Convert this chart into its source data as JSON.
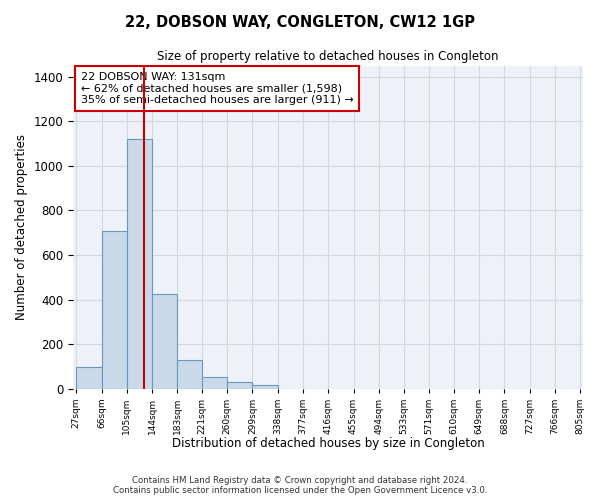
{
  "title": "22, DOBSON WAY, CONGLETON, CW12 1GP",
  "subtitle": "Size of property relative to detached houses in Congleton",
  "xlabel": "Distribution of detached houses by size in Congleton",
  "ylabel": "Number of detached properties",
  "bin_edges": [
    27,
    66,
    105,
    144,
    183,
    221,
    260,
    299,
    338,
    377,
    416,
    455,
    494,
    533,
    571,
    610,
    649,
    688,
    727,
    766,
    805
  ],
  "bin_counts": [
    100,
    710,
    1120,
    425,
    130,
    55,
    30,
    15,
    0,
    0,
    0,
    0,
    0,
    0,
    0,
    0,
    0,
    0,
    0,
    0
  ],
  "bar_facecolor": "#c9d9ea",
  "bar_edgecolor": "#6699bb",
  "redline_x": 131,
  "annotation_title": "22 DOBSON WAY: 131sqm",
  "annotation_line1": "← 62% of detached houses are smaller (1,598)",
  "annotation_line2": "35% of semi-detached houses are larger (911) →",
  "annotation_box_color": "#ffffff",
  "annotation_box_edgecolor": "#cc0000",
  "redline_color": "#cc0000",
  "ylim": [
    0,
    1450
  ],
  "yticks": [
    0,
    200,
    400,
    600,
    800,
    1000,
    1200,
    1400
  ],
  "tick_labels": [
    "27sqm",
    "66sqm",
    "105sqm",
    "144sqm",
    "183sqm",
    "221sqm",
    "260sqm",
    "299sqm",
    "338sqm",
    "377sqm",
    "416sqm",
    "455sqm",
    "494sqm",
    "533sqm",
    "571sqm",
    "610sqm",
    "649sqm",
    "688sqm",
    "727sqm",
    "766sqm",
    "805sqm"
  ],
  "footer_line1": "Contains HM Land Registry data © Crown copyright and database right 2024.",
  "footer_line2": "Contains public sector information licensed under the Open Government Licence v3.0.",
  "background_color": "#ffffff",
  "grid_color": "#d0d8e0"
}
